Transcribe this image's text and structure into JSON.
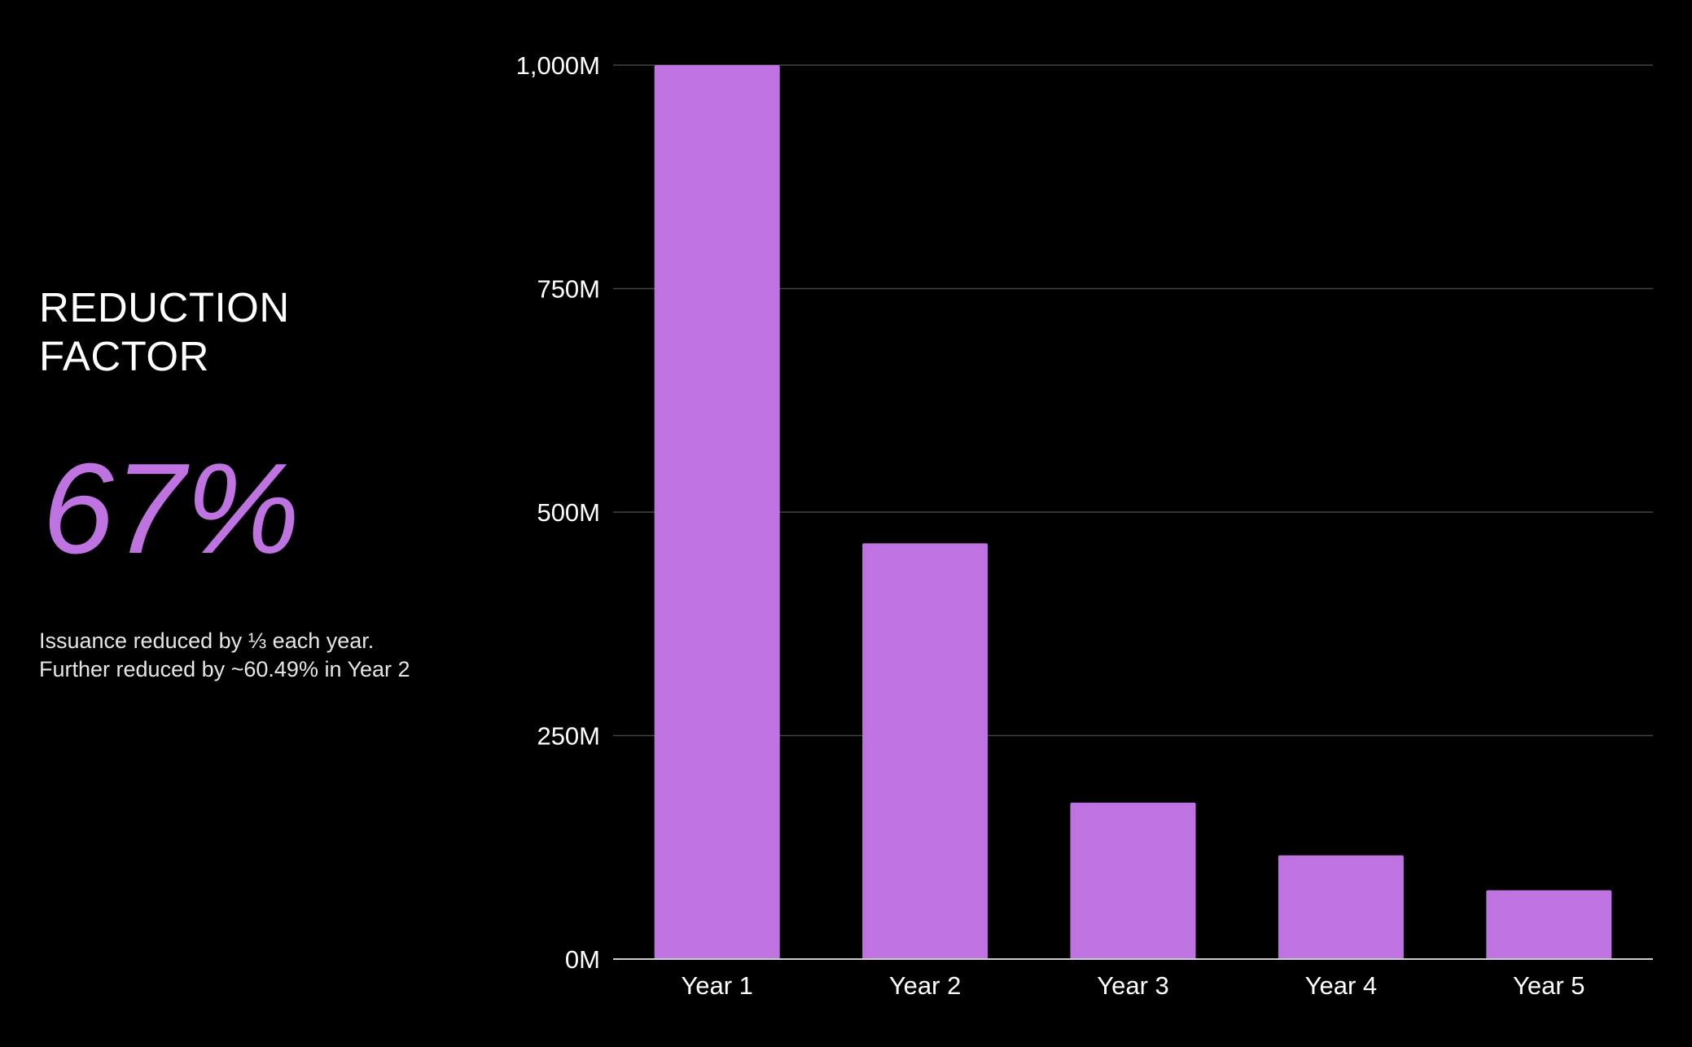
{
  "panel": {
    "heading_line1": "REDUCTION",
    "heading_line2": "FACTOR",
    "value": "67%",
    "note_line1": "Issuance reduced by ⅓ each year.",
    "note_line2": "Further reduced by ~60.49% in Year 2"
  },
  "colors": {
    "background": "#000000",
    "accent": "#bf73e1",
    "grid": "#444444",
    "baseline": "#cccccc"
  },
  "chart_data": {
    "type": "bar",
    "categories": [
      "Year 1",
      "Year 2",
      "Year 3",
      "Year 4",
      "Year 5"
    ],
    "values": [
      1000,
      465,
      175,
      116,
      77
    ],
    "ylim": [
      0,
      1000
    ],
    "yticks": [
      0,
      250,
      500,
      750,
      1000
    ],
    "ytick_labels": [
      "0M",
      "250M",
      "500M",
      "750M",
      "1,000M"
    ],
    "grid": true,
    "color": "#bf73e1",
    "xlabel": "",
    "ylabel": "",
    "title": ""
  }
}
